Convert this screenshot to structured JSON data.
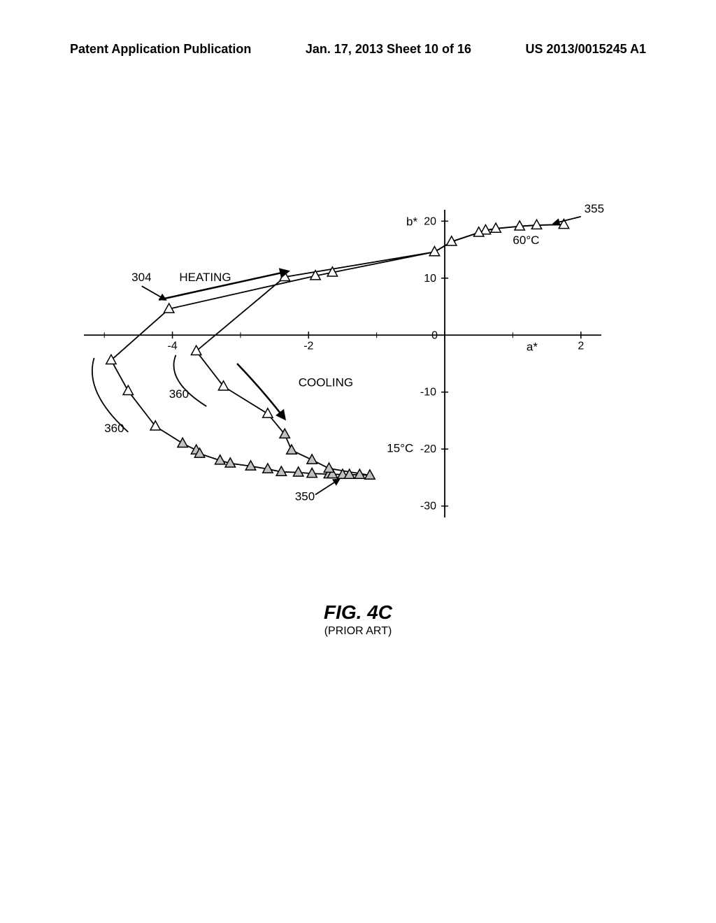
{
  "header": {
    "left": "Patent Application Publication",
    "center": "Jan. 17, 2013  Sheet 10 of 16",
    "right": "US 2013/0015245 A1"
  },
  "figure": {
    "title": "FIG. 4C",
    "subtitle": "(PRIOR ART)"
  },
  "chart": {
    "type": "scatter",
    "background_color": "#ffffff",
    "stroke_color": "#000000",
    "marker": {
      "shape": "triangle",
      "size": 12,
      "fill_open": "#ffffff",
      "fill_shaded": "#c0c0c0",
      "stroke": "#000000",
      "stroke_width": 1.5
    },
    "axes": {
      "x": {
        "label": "a*",
        "min": -5.3,
        "max": 2.3,
        "ticks": [
          -4,
          -2,
          0,
          2
        ]
      },
      "y": {
        "label": "b*",
        "min": -32,
        "max": 22,
        "ticks": [
          -30,
          -20,
          -10,
          0,
          10,
          20
        ]
      }
    },
    "annotations": {
      "heating": "HEATING",
      "cooling": "COOLING",
      "high_temp": "60°C",
      "low_temp": "15°C",
      "ref_304": "304",
      "ref_355": "355",
      "ref_350": "350",
      "ref_360_a": "360",
      "ref_360_b": "360"
    },
    "paths": {
      "upper": [
        [
          1.75,
          19.4
        ],
        [
          1.35,
          19.3
        ],
        [
          1.1,
          19.1
        ],
        [
          0.75,
          18.7
        ],
        [
          0.6,
          18.4
        ],
        [
          0.5,
          18.0
        ],
        [
          0.1,
          16.4
        ],
        [
          -0.15,
          14.6
        ],
        [
          -1.65,
          11.0
        ],
        [
          -1.9,
          10.4
        ],
        [
          -4.05,
          4.6
        ],
        [
          -4.9,
          -4.4
        ],
        [
          -4.65,
          -9.8
        ],
        [
          -4.25,
          -16.0
        ],
        [
          -3.85,
          -19.0
        ],
        [
          -3.65,
          -20.2
        ],
        [
          -3.6,
          -20.8
        ],
        [
          -3.3,
          -22.0
        ],
        [
          -3.15,
          -22.5
        ],
        [
          -2.85,
          -23.0
        ],
        [
          -2.6,
          -23.5
        ],
        [
          -2.4,
          -24.0
        ],
        [
          -2.15,
          -24.1
        ],
        [
          -1.95,
          -24.3
        ],
        [
          -1.7,
          -24.4
        ],
        [
          -1.65,
          -24.4
        ],
        [
          -1.5,
          -24.5
        ],
        [
          -1.4,
          -24.5
        ],
        [
          -1.25,
          -24.5
        ],
        [
          -1.1,
          -24.6
        ]
      ],
      "lower": [
        [
          1.75,
          19.4
        ],
        [
          1.35,
          19.3
        ],
        [
          1.1,
          19.1
        ],
        [
          0.75,
          18.7
        ],
        [
          0.6,
          18.4
        ],
        [
          0.5,
          18.0
        ],
        [
          0.1,
          16.4
        ],
        [
          -0.15,
          14.6
        ],
        [
          -2.35,
          10.2
        ],
        [
          -3.65,
          -2.8
        ],
        [
          -3.25,
          -9.0
        ],
        [
          -2.6,
          -13.8
        ],
        [
          -2.35,
          -17.4
        ],
        [
          -2.25,
          -20.2
        ],
        [
          -1.95,
          -21.9
        ],
        [
          -1.7,
          -23.4
        ],
        [
          -1.1,
          -24.6
        ]
      ]
    },
    "markers_open": [
      [
        1.75,
        19.4
      ],
      [
        1.35,
        19.3
      ],
      [
        1.1,
        19.1
      ],
      [
        0.75,
        18.7
      ],
      [
        0.6,
        18.4
      ],
      [
        0.5,
        18.0
      ],
      [
        0.1,
        16.4
      ],
      [
        -0.15,
        14.6
      ],
      [
        -1.65,
        11.0
      ],
      [
        -1.9,
        10.4
      ],
      [
        -4.05,
        4.6
      ],
      [
        -4.9,
        -4.4
      ],
      [
        -4.65,
        -9.8
      ],
      [
        -4.25,
        -16.0
      ],
      [
        -2.35,
        10.2
      ],
      [
        -3.65,
        -2.8
      ],
      [
        -3.25,
        -9.0
      ],
      [
        -2.6,
        -13.8
      ]
    ],
    "markers_shaded": [
      [
        -3.85,
        -19.0
      ],
      [
        -3.65,
        -20.2
      ],
      [
        -3.6,
        -20.8
      ],
      [
        -3.3,
        -22.0
      ],
      [
        -3.15,
        -22.5
      ],
      [
        -2.85,
        -23.0
      ],
      [
        -2.6,
        -23.5
      ],
      [
        -2.4,
        -24.0
      ],
      [
        -2.15,
        -24.1
      ],
      [
        -1.95,
        -24.3
      ],
      [
        -1.7,
        -24.4
      ],
      [
        -1.65,
        -24.4
      ],
      [
        -1.5,
        -24.5
      ],
      [
        -1.4,
        -24.5
      ],
      [
        -1.25,
        -24.5
      ],
      [
        -1.1,
        -24.6
      ],
      [
        -2.35,
        -17.4
      ],
      [
        -2.25,
        -20.2
      ],
      [
        -1.95,
        -21.9
      ],
      [
        -1.7,
        -23.4
      ]
    ]
  }
}
